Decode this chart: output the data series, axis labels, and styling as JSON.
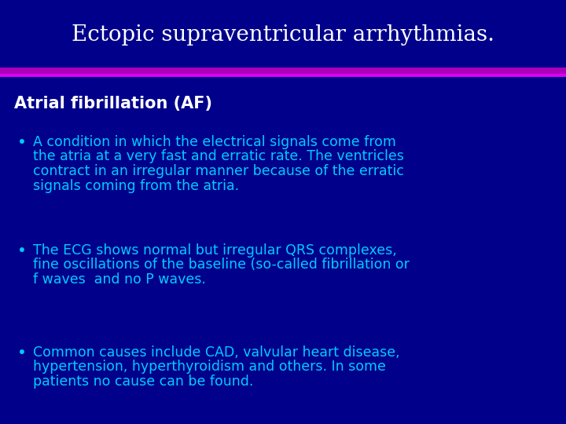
{
  "title": "Ectopic supraventricular arrhythmias.",
  "title_color": "#ffffff",
  "title_fontsize": 20,
  "title_font": "serif",
  "bg_color": "#00008B",
  "separator_color_top": "#9900CC",
  "separator_color_bot": "#CC00FF",
  "subtitle": "Atrial fibrillation (AF)",
  "subtitle_color": "#ffffff",
  "subtitle_fontsize": 15,
  "bullet_color": "#00CCFF",
  "bullet_fontsize": 12.5,
  "bullets": [
    "A condition in which the electrical signals come from\nthe atria at a very fast and erratic rate. The ventricles\ncontract in an irregular manner because of the erratic\nsignals coming from the atria.",
    "The ECG shows normal but irregular QRS complexes,\nfine oscillations of the baseline (so-called fibrillation or\nf waves  and no P waves.",
    "Common causes include CAD, valvular heart disease,\nhypertension, hyperthyroidism and others. In some\npatients no cause can be found."
  ],
  "fig_width": 7.2,
  "fig_height": 5.4,
  "dpi": 100
}
